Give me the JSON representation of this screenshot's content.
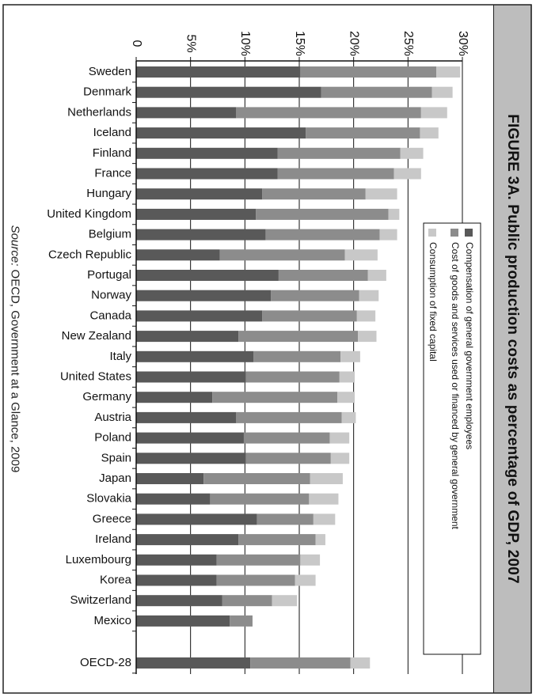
{
  "source": {
    "label": "Source:",
    "text": "OECD, Government at a Glance, 2009"
  },
  "chart_data": {
    "type": "bar",
    "orientation": "horizontal",
    "stacked": true,
    "title": "FIGURE 3A. Public production costs as percentage of GDP, 2007",
    "x_ticks": [
      "0",
      "5%",
      "10%",
      "15%",
      "20%",
      "25%",
      "30%"
    ],
    "xlim": [
      0,
      30
    ],
    "categories": [
      "Sweden",
      "Denmark",
      "Netherlands",
      "Iceland",
      "Finland",
      "France",
      "Hungary",
      "United Kingdom",
      "Belgium",
      "Czech Republic",
      "Portugal",
      "Norway",
      "Canada",
      "New Zealand",
      "Italy",
      "United States",
      "Germany",
      "Austria",
      "Poland",
      "Spain",
      "Japan",
      "Slovakia",
      "Greece",
      "Ireland",
      "Luxembourg",
      "Korea",
      "Switzerland",
      "Mexico",
      "OECD-28"
    ],
    "series": [
      {
        "name": "Compensation of general government employees",
        "color": "#595959",
        "values": [
          15.1,
          17.0,
          9.2,
          15.6,
          13.0,
          13.0,
          11.6,
          11.0,
          11.9,
          7.7,
          13.1,
          12.4,
          11.6,
          9.4,
          10.8,
          10.1,
          7.0,
          9.2,
          9.9,
          10.1,
          6.2,
          6.8,
          11.1,
          9.4,
          7.4,
          7.4,
          7.9,
          8.6,
          10.5
        ]
      },
      {
        "name": "Cost of goods and services used or financed by general government",
        "color": "#8c8c8c",
        "values": [
          12.5,
          10.2,
          17.0,
          10.5,
          11.3,
          10.7,
          9.5,
          12.2,
          10.5,
          11.5,
          8.2,
          8.1,
          8.7,
          11.0,
          8.0,
          8.6,
          11.5,
          9.7,
          7.9,
          7.8,
          9.8,
          9.1,
          5.2,
          7.1,
          7.7,
          7.2,
          4.6,
          2.1,
          9.2
        ]
      },
      {
        "name": "Consumption of fixed capital",
        "color": "#c8c8c8",
        "values": [
          2.2,
          1.9,
          2.4,
          1.7,
          2.1,
          2.5,
          2.9,
          1.0,
          1.6,
          3.0,
          1.7,
          1.8,
          1.7,
          1.7,
          1.8,
          1.4,
          1.6,
          1.3,
          1.8,
          1.7,
          3.0,
          2.7,
          2.0,
          0.9,
          1.8,
          1.9,
          2.3,
          0.0,
          1.8
        ]
      }
    ],
    "gridlines": true,
    "legend_position": "upper-right"
  }
}
